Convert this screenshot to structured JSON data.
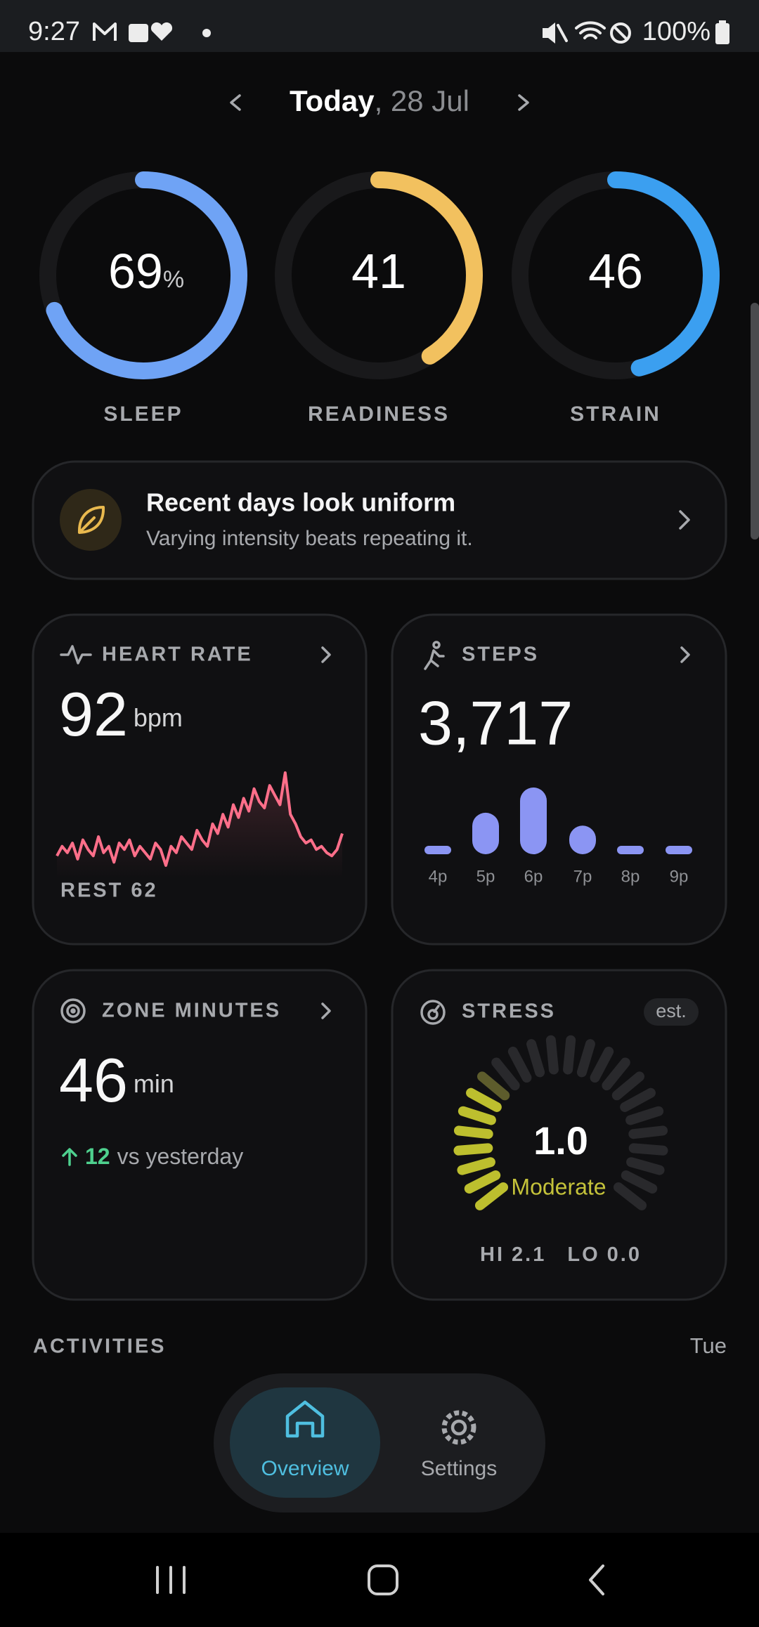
{
  "status_bar": {
    "time": "9:27",
    "battery": "100%"
  },
  "header": {
    "today": "Today",
    "date": ", 28 Jul"
  },
  "rings": [
    {
      "label": "SLEEP",
      "value": 69,
      "unit": "%",
      "color": "#6fa3f5"
    },
    {
      "label": "READINESS",
      "value": 41,
      "color": "#f2c15f"
    },
    {
      "label": "STRAIN",
      "value": 46,
      "color": "#3b9ff0"
    }
  ],
  "insight": {
    "title": "Recent days look uniform",
    "subtitle": "Varying intensity beats repeating it."
  },
  "heart_rate": {
    "title": "HEART RATE",
    "value": "92",
    "unit": "bpm",
    "rest": "REST 62",
    "trend": [
      82,
      85,
      83,
      86,
      81,
      87,
      84,
      82,
      88,
      83,
      85,
      80,
      86,
      84,
      87,
      82,
      85,
      83,
      81,
      86,
      84,
      79,
      85,
      83,
      88,
      86,
      84,
      90,
      87,
      85,
      92,
      89,
      95,
      91,
      98,
      94,
      100,
      96,
      103,
      99,
      97,
      104,
      101,
      98,
      108,
      95,
      92,
      88,
      86,
      87,
      84,
      85,
      83,
      82,
      84,
      89
    ]
  },
  "steps": {
    "title": "STEPS",
    "value": "3,717",
    "hours": [
      "4p",
      "5p",
      "6p",
      "7p",
      "8p",
      "9p"
    ],
    "counts": [
      0,
      610,
      980,
      420,
      0,
      0
    ],
    "color": "#8b95f3"
  },
  "zone_minutes": {
    "title": "ZONE MINUTES",
    "value": "46",
    "unit": "min",
    "delta": "12",
    "delta_text": "vs yesterday"
  },
  "stress": {
    "title": "STRESS",
    "badge": "est.",
    "value": "1.0",
    "level": "Moderate",
    "hi_label": "HI",
    "hi": "2.1",
    "lo_label": "LO",
    "lo": "0.0"
  },
  "section": {
    "title": "ACTIVITIES",
    "day": "Tue"
  },
  "nav": [
    {
      "label": "Overview"
    },
    {
      "label": "Settings"
    }
  ]
}
